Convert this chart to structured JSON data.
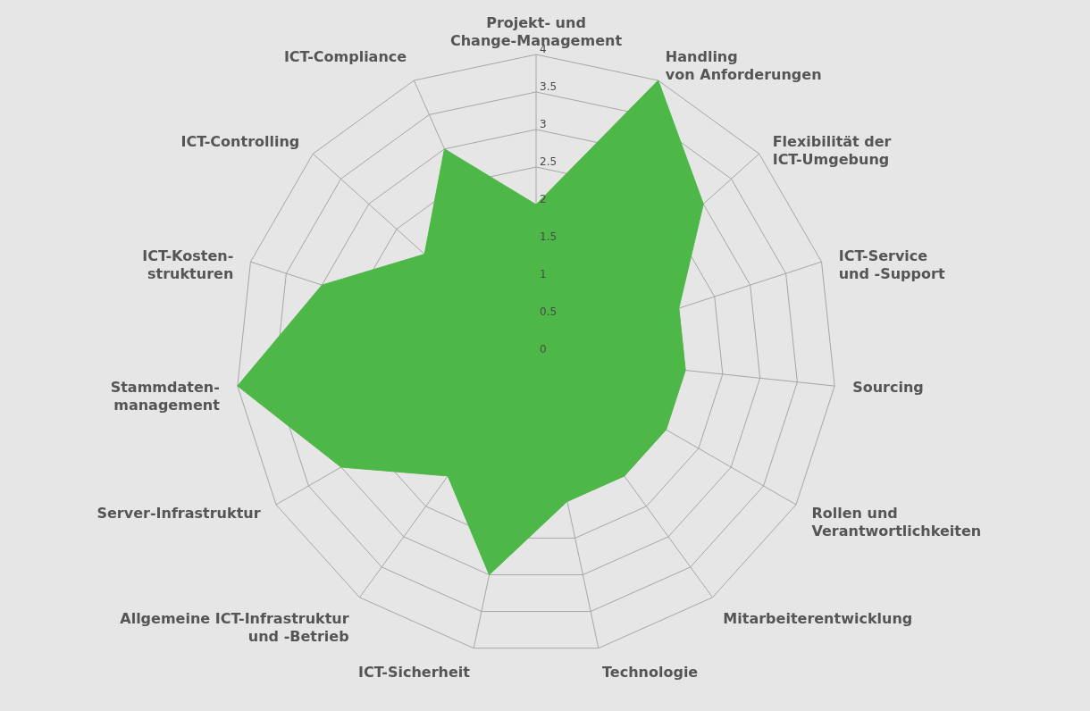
{
  "chart_data": {
    "type": "radar",
    "categories": [
      "Projekt- und\nChange-Management",
      "Handling\nvon Anforderungen",
      "Flexibilität der\nICT-Umgebung",
      "ICT-Service\nund -Support",
      "Sourcing",
      "Rollen und\nVerantwortlichkeiten",
      "Mitarbeiterentwicklung",
      "Technologie",
      "ICT-Sicherheit",
      "Allgemeine ICT-Infrastruktur\nund -Betrieb",
      "Server-Infrastruktur",
      "Stammdaten-\nmanagement",
      "ICT-Kosten-\nstrukturen",
      "ICT-Controlling",
      "ICT-Compliance"
    ],
    "series": [
      {
        "color": "#4db848",
        "values": [
          2,
          4,
          3,
          2,
          2,
          2,
          2,
          2,
          3,
          2,
          3,
          4,
          3,
          2,
          3
        ]
      }
    ],
    "ylim": [
      0,
      4
    ],
    "yticks": [
      0,
      0.5,
      1,
      1.5,
      2,
      2.5,
      3,
      3.5,
      4
    ],
    "grid": true
  }
}
